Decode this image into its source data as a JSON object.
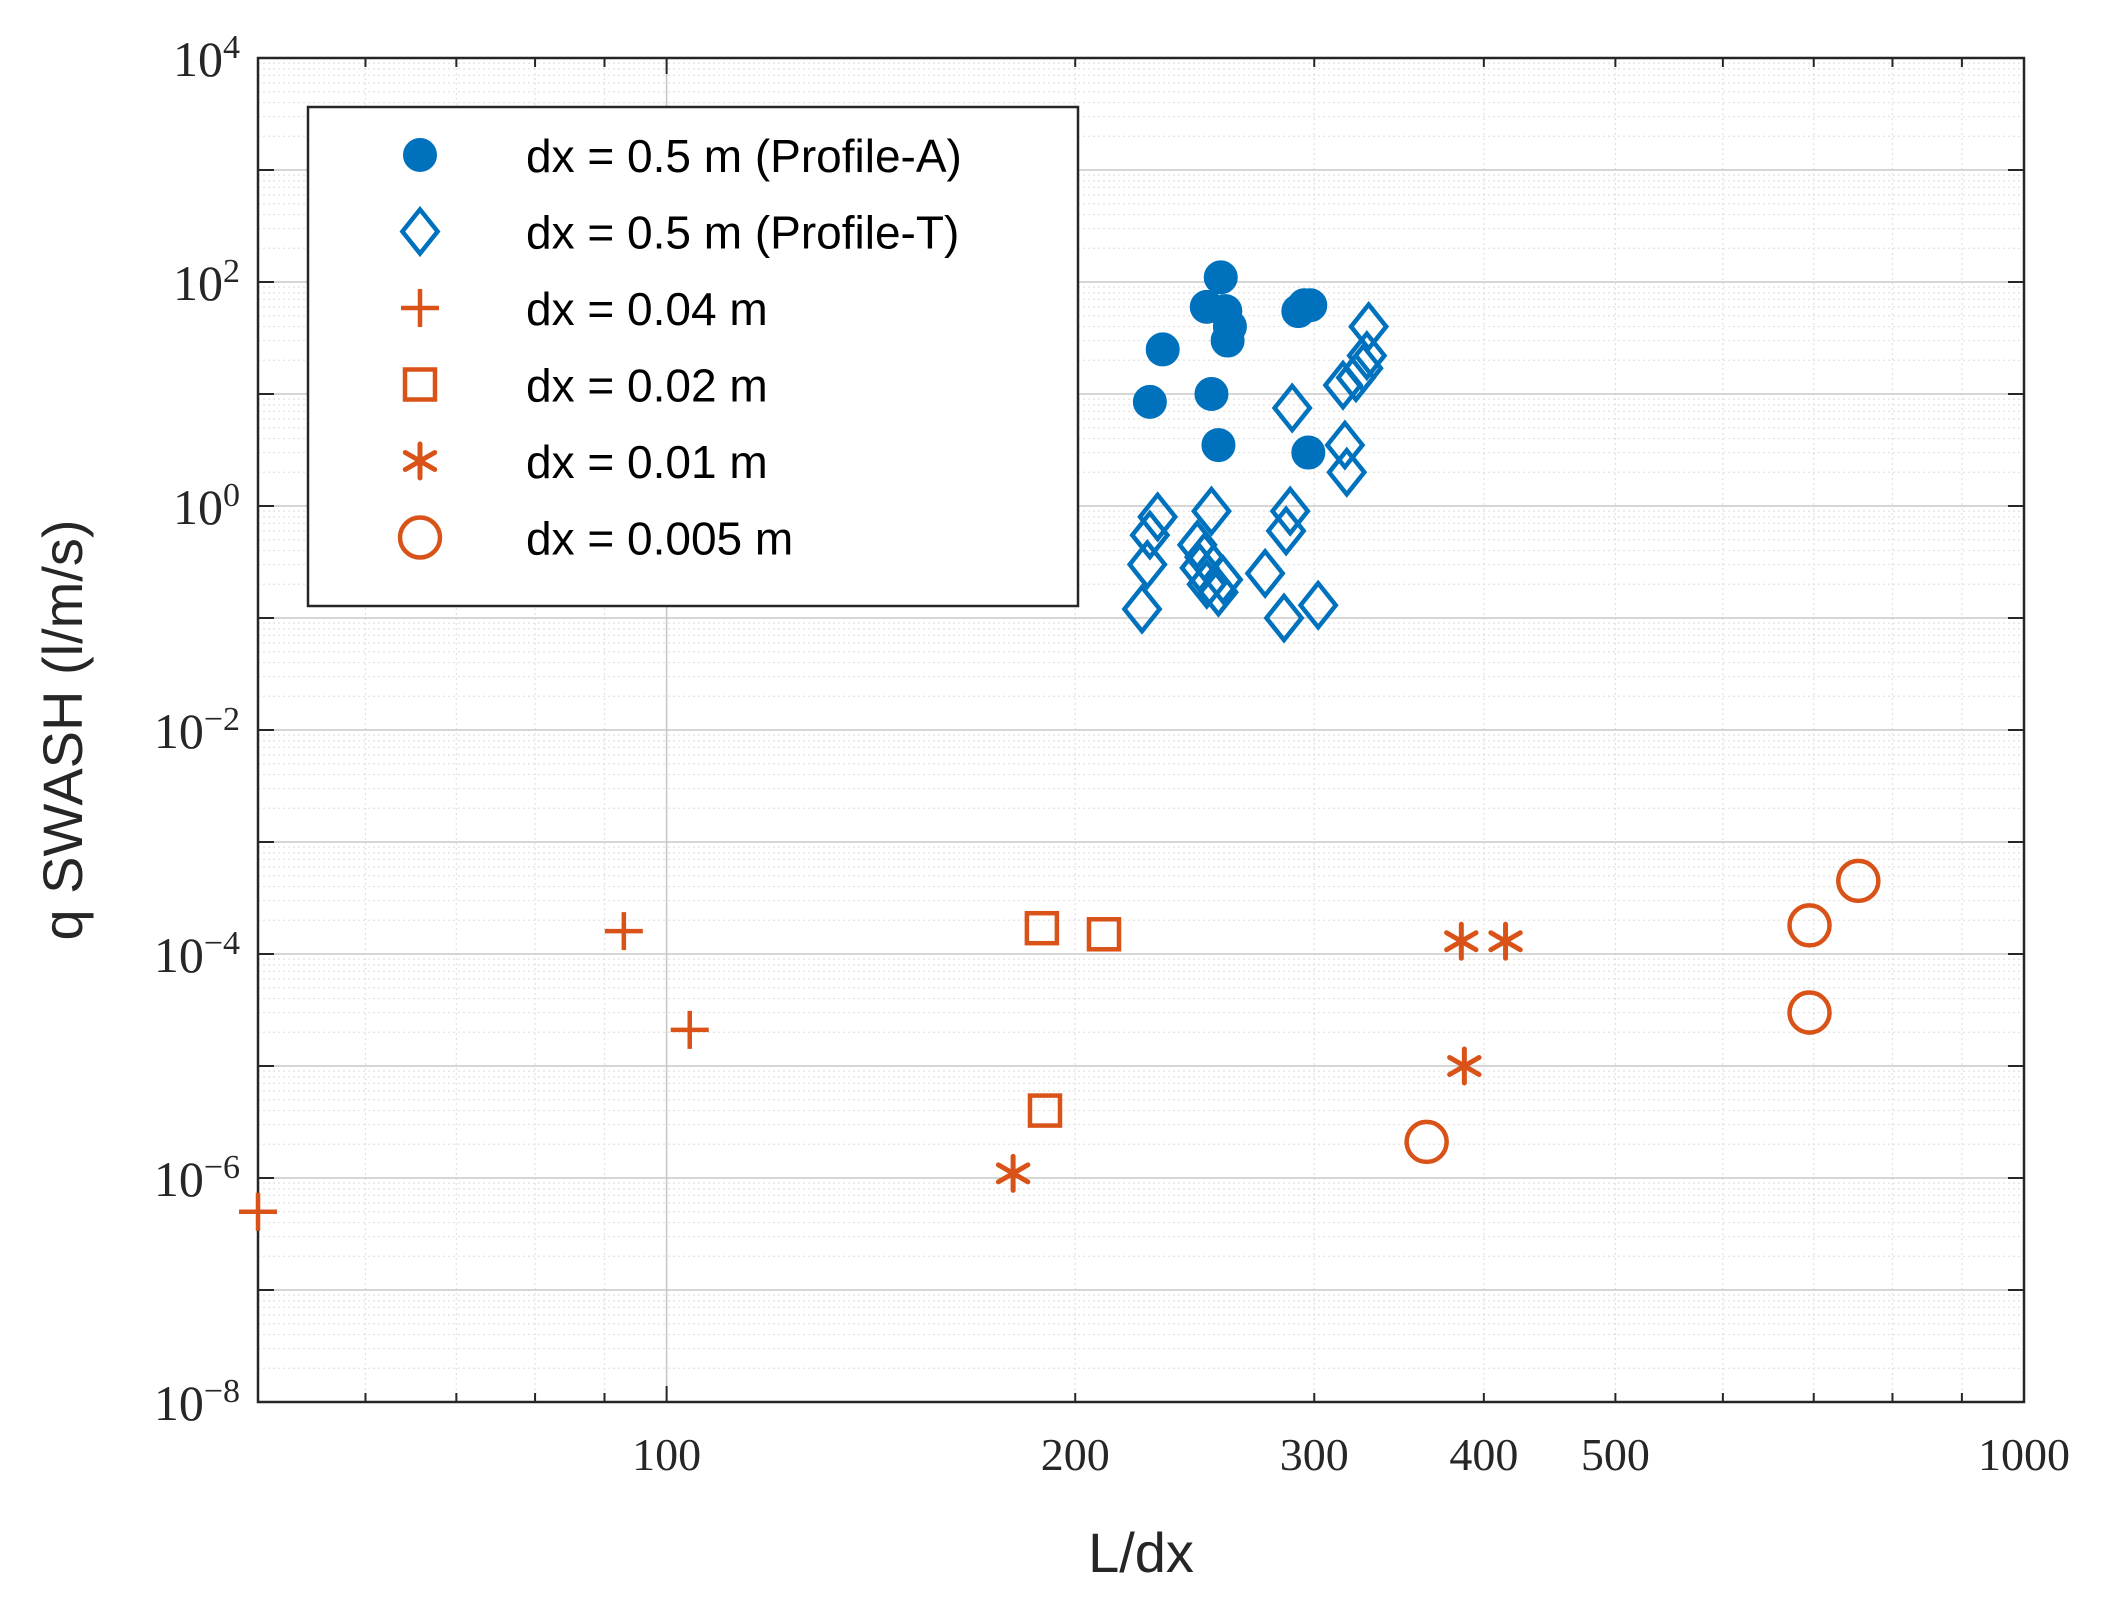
{
  "chart_data": {
    "type": "scatter",
    "title": "",
    "xlabel": "L/dx",
    "ylabel": "q SWASH (l/m/s)",
    "xscale": "log",
    "yscale": "log",
    "xlim": [
      50,
      1000
    ],
    "ylim": [
      1e-08,
      10000
    ],
    "grid": true,
    "minor_grid": true,
    "legend_position": "top-left",
    "x_ticks": [
      {
        "value": 100,
        "label": "100"
      },
      {
        "value": 200,
        "label": "200"
      },
      {
        "value": 300,
        "label": "300"
      },
      {
        "value": 400,
        "label": "400"
      },
      {
        "value": 500,
        "label": "500"
      },
      {
        "value": 1000,
        "label": "1000"
      }
    ],
    "y_ticks": [
      {
        "value": 1e-08,
        "base": "10",
        "exp": "−8"
      },
      {
        "value": 1e-06,
        "base": "10",
        "exp": "−6"
      },
      {
        "value": 0.0001,
        "base": "10",
        "exp": "−4"
      },
      {
        "value": 0.01,
        "base": "10",
        "exp": "−2"
      },
      {
        "value": 1,
        "base": "10",
        "exp": "0"
      },
      {
        "value": 100,
        "base": "10",
        "exp": "2"
      },
      {
        "value": 10000,
        "base": "10",
        "exp": "4"
      }
    ],
    "series": [
      {
        "name": "dx = 0.5 m (Profile-A)",
        "marker": "filled-circle",
        "color": "#0072bd",
        "points": [
          [
            227,
            8.5
          ],
          [
            232,
            25
          ],
          [
            252,
            10
          ],
          [
            250,
            60
          ],
          [
            255,
            3.5
          ],
          [
            256,
            110
          ],
          [
            258,
            55
          ],
          [
            259,
            30
          ],
          [
            260,
            40
          ],
          [
            292,
            55
          ],
          [
            295,
            62
          ],
          [
            298,
            62
          ],
          [
            297,
            3
          ]
        ]
      },
      {
        "name": "dx = 0.5 m (Profile-T)",
        "marker": "open-diamond",
        "color": "#0072bd",
        "points": [
          [
            224,
            0.12
          ],
          [
            226,
            0.3
          ],
          [
            227,
            0.55
          ],
          [
            230,
            0.8
          ],
          [
            246,
            0.45
          ],
          [
            247,
            0.28
          ],
          [
            249,
            0.35
          ],
          [
            250,
            0.2
          ],
          [
            252,
            0.9
          ],
          [
            255,
            0.17
          ],
          [
            257,
            0.22
          ],
          [
            276,
            0.25
          ],
          [
            285,
            0.1
          ],
          [
            286,
            0.6
          ],
          [
            288,
            0.9
          ],
          [
            289,
            7.5
          ],
          [
            302,
            0.13
          ],
          [
            315,
            12
          ],
          [
            316,
            3.5
          ],
          [
            317,
            2
          ],
          [
            322,
            14
          ],
          [
            326,
            17
          ],
          [
            328,
            22
          ],
          [
            329,
            40
          ]
        ]
      },
      {
        "name": "dx = 0.04 m",
        "marker": "plus",
        "color": "#d95319",
        "points": [
          [
            50,
            5e-07
          ],
          [
            93,
            0.00016
          ],
          [
            104,
            2.1e-05
          ]
        ]
      },
      {
        "name": "dx = 0.02 m",
        "marker": "open-square",
        "color": "#d95319",
        "points": [
          [
            189,
            0.00017
          ],
          [
            210,
            0.00015
          ],
          [
            190,
            4e-06
          ]
        ]
      },
      {
        "name": "dx = 0.01 m",
        "marker": "asterisk",
        "color": "#d95319",
        "points": [
          [
            180,
            1.1e-06
          ],
          [
            385,
            0.00013
          ],
          [
            415,
            0.00013
          ],
          [
            387,
            1e-05
          ]
        ]
      },
      {
        "name": "dx = 0.005 m",
        "marker": "open-circle",
        "color": "#d95319",
        "points": [
          [
            363,
            2.1e-06
          ],
          [
            695,
            0.00018
          ],
          [
            755,
            0.00045
          ],
          [
            695,
            3e-05
          ]
        ]
      }
    ]
  }
}
